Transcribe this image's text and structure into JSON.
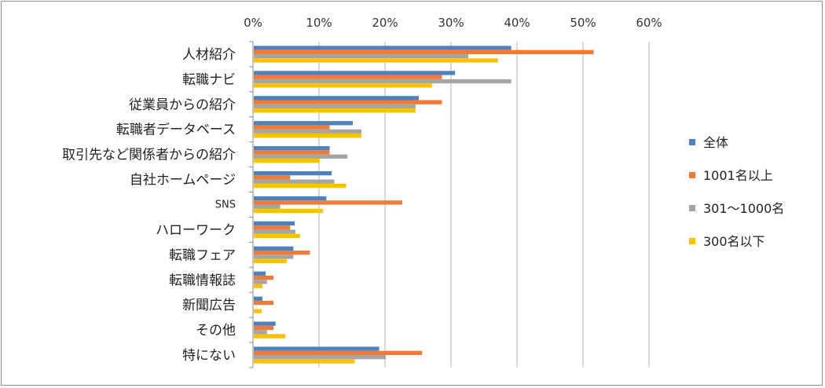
{
  "chart_data": {
    "type": "bar",
    "orientation": "horizontal",
    "categories": [
      "人材紹介",
      "転職ナビ",
      "従業員からの紹介",
      "転職者データベース",
      "取引先など関係者からの紹介",
      "自社ホームページ",
      "SNS",
      "ハローワーク",
      "転職フェア",
      "転職情報誌",
      "新聞広告",
      "その他",
      "特にない"
    ],
    "series": [
      {
        "name": "全体",
        "color": "#4f81bd",
        "values": [
          39,
          30.5,
          25,
          15,
          11.5,
          11.8,
          11,
          6.2,
          6,
          1.8,
          1.3,
          3.3,
          19
        ]
      },
      {
        "name": "1001名以上",
        "color": "#f07a36",
        "values": [
          51.5,
          28.5,
          28.5,
          11.5,
          11.5,
          5.5,
          22.5,
          5.5,
          8.5,
          3,
          3,
          3,
          25.5
        ]
      },
      {
        "name": "301〜1000名",
        "color": "#a5a5a5",
        "values": [
          32.5,
          39,
          24.5,
          16.3,
          14.2,
          12.2,
          4,
          6.3,
          6,
          2,
          0,
          2,
          20
        ]
      },
      {
        "name": "300名以下",
        "color": "#ffc000",
        "values": [
          37,
          27,
          24.5,
          16.3,
          10,
          14,
          10.5,
          7,
          5,
          1.3,
          1.2,
          4.8,
          15.3
        ]
      }
    ],
    "xlim": [
      0,
      60
    ],
    "xticks": [
      "0%",
      "10%",
      "20%",
      "30%",
      "40%",
      "50%",
      "60%"
    ],
    "grid": true,
    "legend_position": "right"
  }
}
